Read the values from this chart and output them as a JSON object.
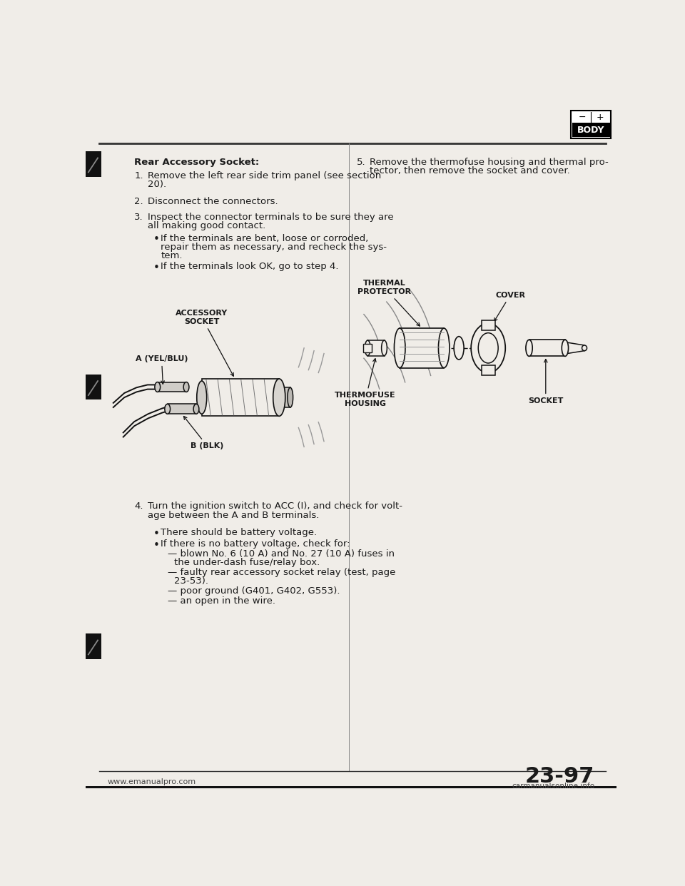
{
  "page_color": "#f0ede8",
  "text_color": "#1a1a1a",
  "line_color": "#111111",
  "title": "Rear Accessory Socket:",
  "step1_num": "1.",
  "step1_a": "Remove the left rear side trim panel (see section",
  "step1_b": "20).",
  "step2_num": "2.",
  "step2": "Disconnect the connectors.",
  "step3_num": "3.",
  "step3_a": "Inspect the connector terminals to be sure they are",
  "step3_b": "all making good contact.",
  "bullet1_a": "If the terminals are bent, loose or corroded,",
  "bullet1_b": "repair them as necessary, and recheck the sys-",
  "bullet1_c": "tem.",
  "bullet2": "If the terminals look OK, go to step 4.",
  "step4_num": "4.",
  "step4_a": "Turn the ignition switch to ACC (I), and check for volt-",
  "step4_b": "age between the A and B terminals.",
  "b4_1": "There should be battery voltage.",
  "b4_2": "If there is no battery voltage, check for:",
  "dash1_a": "blown No. 6 (10 A) and No. 27 (10 A) fuses in",
  "dash1_b": "the under-dash fuse/relay box.",
  "dash2_a": "faulty rear accessory socket relay (test, page",
  "dash2_b": "23-53).",
  "dash3": "poor ground (G401, G402, G553).",
  "dash4": "an open in the wire.",
  "step5_num": "5.",
  "step5_a": "Remove the thermofuse housing and thermal pro-",
  "step5_b": "tector, then remove the socket and cover.",
  "label_accessory": "ACCESSORY\nSOCKET",
  "label_a": "A (YEL/BLU)",
  "label_b": "B (BLK)",
  "label_thermal": "THERMAL\nPROTECTOR",
  "label_cover": "COVER",
  "label_thermofuse": "THERMOFUSE\nHOUSING",
  "label_socket": "SOCKET",
  "footer_left": "www.emanualpro.com",
  "footer_right": "23-97",
  "footer_brand": "carmanualsonline.info",
  "body_label": "BODY"
}
